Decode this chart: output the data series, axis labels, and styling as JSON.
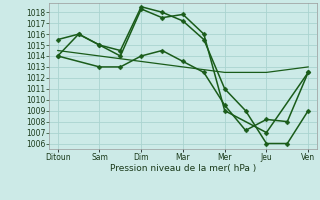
{
  "x_labels": [
    "Ditoun",
    "Sam",
    "Dim",
    "Mar",
    "Mer",
    "Jeu",
    "Ven"
  ],
  "x_positions": [
    0,
    1,
    2,
    3,
    4,
    5,
    6
  ],
  "series": [
    {
      "name": "line1_high_peak",
      "x": [
        0,
        0.5,
        1.0,
        1.5,
        2.0,
        2.5,
        3.0,
        3.5,
        4.0,
        5.0,
        6.0
      ],
      "y": [
        1014.0,
        1016.0,
        1015.0,
        1014.0,
        1018.3,
        1017.5,
        1017.8,
        1016.0,
        1009.0,
        1007.0,
        1012.5
      ]
    },
    {
      "name": "line2_highest_peak",
      "x": [
        0,
        0.5,
        1.0,
        1.5,
        2.0,
        2.5,
        3.0,
        3.5,
        4.0,
        4.5,
        5.0,
        5.5,
        6.0
      ],
      "y": [
        1015.5,
        1016.0,
        1015.0,
        1014.5,
        1018.5,
        1018.0,
        1017.2,
        1015.5,
        1011.0,
        1009.0,
        1006.0,
        1006.0,
        1009.0
      ]
    },
    {
      "name": "line3_low_flat",
      "x": [
        0,
        1.0,
        1.5,
        2.0,
        2.5,
        3.0,
        3.5,
        4.0,
        4.5,
        5.0,
        5.5,
        6.0
      ],
      "y": [
        1014.0,
        1013.0,
        1013.0,
        1014.0,
        1014.5,
        1013.5,
        1012.5,
        1009.5,
        1007.2,
        1008.2,
        1008.0,
        1012.5
      ]
    },
    {
      "name": "line4_trend",
      "x": [
        0,
        1,
        2,
        3,
        4,
        5,
        6
      ],
      "y": [
        1014.5,
        1014.0,
        1013.5,
        1013.0,
        1012.5,
        1012.5,
        1013.0
      ]
    }
  ],
  "ylim": [
    1005.5,
    1018.8
  ],
  "yticks": [
    1006,
    1007,
    1008,
    1009,
    1010,
    1011,
    1012,
    1013,
    1014,
    1015,
    1016,
    1017,
    1018
  ],
  "xlim": [
    -0.2,
    6.2
  ],
  "xlabel": "Pression niveau de la mer( hPa )",
  "background_color": "#cceae7",
  "grid_color": "#aad4d0",
  "line_color": "#1a5c1a",
  "tick_label_color": "#1a3a1a",
  "xlabel_fontsize": 6.5,
  "tick_fontsize": 5.5,
  "linewidth": 1.1,
  "markersize": 2.5
}
